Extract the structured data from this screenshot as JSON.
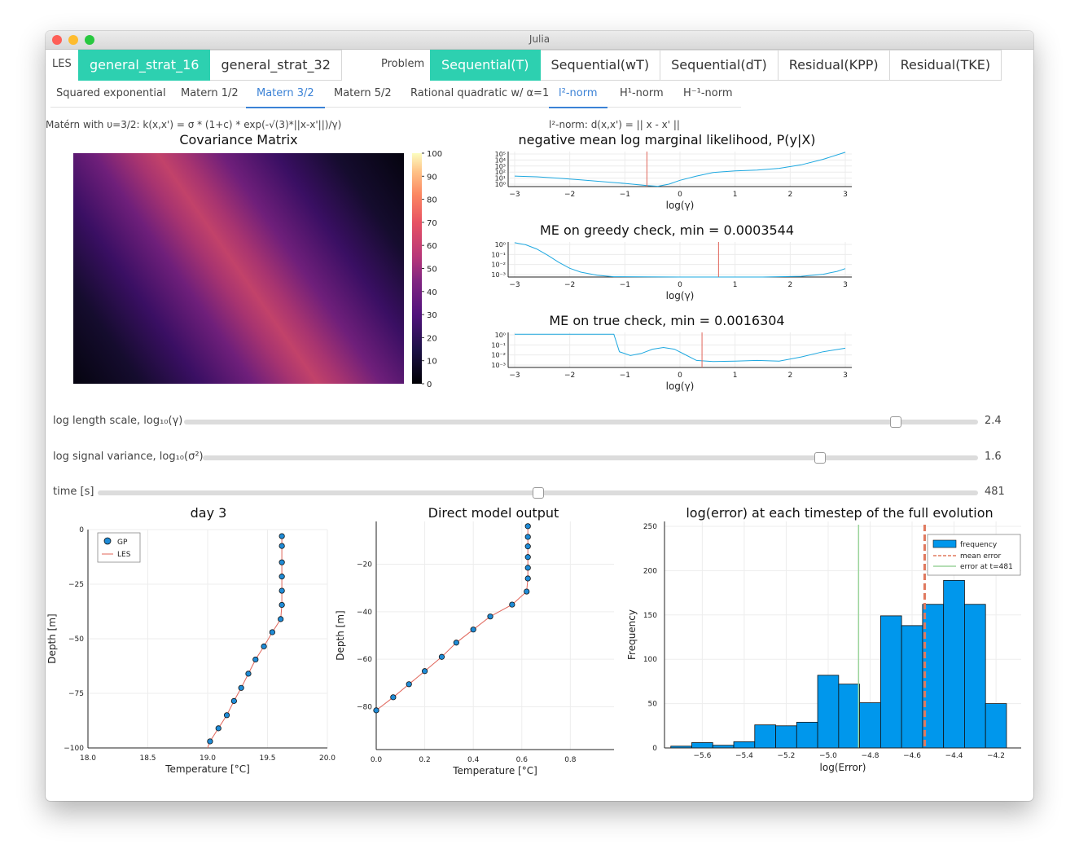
{
  "window": {
    "title": "Julia"
  },
  "les": {
    "label": "LES",
    "tabs": [
      "general_strat_16",
      "general_strat_32"
    ],
    "active": 0
  },
  "problem": {
    "label": "Problem",
    "tabs": [
      "Sequential(T)",
      "Sequential(wT)",
      "Sequential(dT)",
      "Residual(KPP)",
      "Residual(TKE)"
    ],
    "active": 0
  },
  "kernels": {
    "tabs": [
      "Squared exponential",
      "Matern 1/2",
      "Matern 3/2",
      "Matern 5/2",
      "Rational quadratic w/ α=1",
      "l²-norm",
      "H¹-norm",
      "H⁻¹-norm"
    ],
    "active_kernel": 2,
    "active_norm": 5
  },
  "formulas": {
    "kernel": "Matérn with υ=3/2: k(x,x') = σ * (1+c) * exp(-√(3)*||x-x'||)/γ)",
    "norm": "l²-norm: d(x,x') = || x - x' ||"
  },
  "heatmap": {
    "title": "Covariance Matrix",
    "colorbar_ticks": [
      "100",
      "90",
      "80",
      "70",
      "60",
      "50",
      "40",
      "30",
      "20",
      "10",
      "0"
    ]
  },
  "likelihood": {
    "title": "negative mean log marginal likelihood, P(y|X)",
    "xlabel": "log(γ)",
    "yticks": [
      "10⁵",
      "10⁴",
      "10³",
      "10²",
      "10¹",
      "10⁰"
    ]
  },
  "greedy": {
    "title": "ME on greedy check, min = 0.0003544",
    "xlabel": "log(γ)",
    "yticks": [
      "10⁰",
      "10⁻¹",
      "10⁻²",
      "10⁻³"
    ]
  },
  "truecheck": {
    "title": "ME on true check, min = 0.0016304",
    "xlabel": "log(γ)",
    "yticks": [
      "10⁰",
      "10⁻¹",
      "10⁻²",
      "10⁻³"
    ]
  },
  "xticks_small": [
    "−3",
    "−2",
    "−1",
    "0",
    "1",
    "2",
    "3"
  ],
  "sliders": [
    {
      "label": "log length scale, log₁₀(γ)",
      "value": "2.4",
      "fraction": 0.896
    },
    {
      "label": "log signal variance, log₁₀(σ²)",
      "value": "1.6",
      "fraction": 0.796
    },
    {
      "label": "time [s]",
      "value": "481",
      "fraction": 0.5
    }
  ],
  "chart_data": [
    {
      "type": "scatter",
      "title": "day 3",
      "xlabel": "Temperature [°C]",
      "ylabel": "Depth [m]",
      "xlim": [
        18.0,
        20.0
      ],
      "ylim": [
        -100,
        0
      ],
      "xticks": [
        "18.0",
        "18.5",
        "19.0",
        "19.5",
        "20.0"
      ],
      "yticks": [
        "0",
        "−25",
        "−50",
        "−75",
        "−100"
      ],
      "legend": [
        "GP",
        "LES"
      ],
      "series": [
        {
          "name": "GP",
          "x": [
            19.62,
            19.62,
            19.62,
            19.62,
            19.62,
            19.62,
            19.61,
            19.54,
            19.47,
            19.4,
            19.34,
            19.28,
            19.22,
            19.16,
            19.09,
            19.02
          ],
          "y": [
            -3,
            -7.5,
            -15,
            -21.5,
            -28,
            -34.5,
            -41,
            -47,
            -53.5,
            -59.5,
            -66,
            -72.5,
            -78.5,
            -85,
            -91,
            -97
          ]
        },
        {
          "name": "LES",
          "x": [
            19.62,
            19.62,
            19.62,
            19.62,
            19.62,
            19.62,
            19.61,
            19.54,
            19.47,
            19.4,
            19.34,
            19.28,
            19.22,
            19.16,
            19.09,
            19.02,
            19.0
          ],
          "y": [
            -3,
            -7.5,
            -15,
            -21.5,
            -28,
            -34.5,
            -41,
            -47,
            -53.5,
            -59.5,
            -66,
            -72.5,
            -78.5,
            -85,
            -91,
            -97,
            -100
          ]
        }
      ]
    },
    {
      "type": "scatter",
      "title": "Direct model output",
      "xlabel": "Temperature [°C]",
      "ylabel": "Depth [m]",
      "xlim": [
        0.0,
        0.98
      ],
      "ylim": [
        -98,
        -2
      ],
      "xticks": [
        "0.0",
        "0.2",
        "0.4",
        "0.6",
        "0.8"
      ],
      "yticks": [
        "−20",
        "−40",
        "−60",
        "−80"
      ],
      "series": [
        {
          "name": "GP",
          "x": [
            0.625,
            0.625,
            0.625,
            0.625,
            0.625,
            0.625,
            0.62,
            0.56,
            0.47,
            0.4,
            0.33,
            0.27,
            0.2,
            0.135,
            0.07,
            0.0
          ],
          "y": [
            -4,
            -8.5,
            -12.5,
            -17,
            -21.5,
            -26,
            -31.5,
            -37,
            -42,
            -47.5,
            -53,
            -59,
            -65,
            -70.5,
            -76,
            -81.5
          ]
        },
        {
          "name": "LES",
          "x": [
            0.625,
            0.625,
            0.625,
            0.625,
            0.625,
            0.625,
            0.62,
            0.56,
            0.47,
            0.4,
            0.33,
            0.27,
            0.2,
            0.135,
            0.07,
            0.0
          ],
          "y": [
            -4,
            -8.5,
            -12.5,
            -17,
            -21.5,
            -26,
            -31.5,
            -37,
            -42,
            -47.5,
            -53,
            -59,
            -65,
            -70.5,
            -76,
            -81.5
          ]
        }
      ]
    },
    {
      "type": "bar",
      "title": "log(error) at each timestep of the full evolution",
      "xlabel": "log(Error)",
      "ylabel": "Frequency",
      "xlim": [
        -5.78,
        -4.08
      ],
      "ylim": [
        0,
        250
      ],
      "xticks": [
        "−5.6",
        "−5.4",
        "−5.2",
        "−5.0",
        "−4.8",
        "−4.6",
        "−4.4",
        "−4.2"
      ],
      "yticks": [
        "250",
        "200",
        "150",
        "100",
        "50",
        "0"
      ],
      "legend": [
        "frequency",
        "mean error",
        "error at t=481"
      ],
      "bin_edges": [
        -5.75,
        -5.65,
        -5.55,
        -5.45,
        -5.35,
        -5.25,
        -5.15,
        -5.05,
        -4.95,
        -4.85,
        -4.75,
        -4.65,
        -4.55,
        -4.45,
        -4.35,
        -4.25,
        -4.15
      ],
      "values": [
        2,
        6,
        3,
        7,
        26,
        25,
        29,
        82,
        72,
        51,
        149,
        138,
        162,
        189,
        162,
        50
      ],
      "mean_error": -4.54,
      "error_at_t": -4.855
    }
  ]
}
